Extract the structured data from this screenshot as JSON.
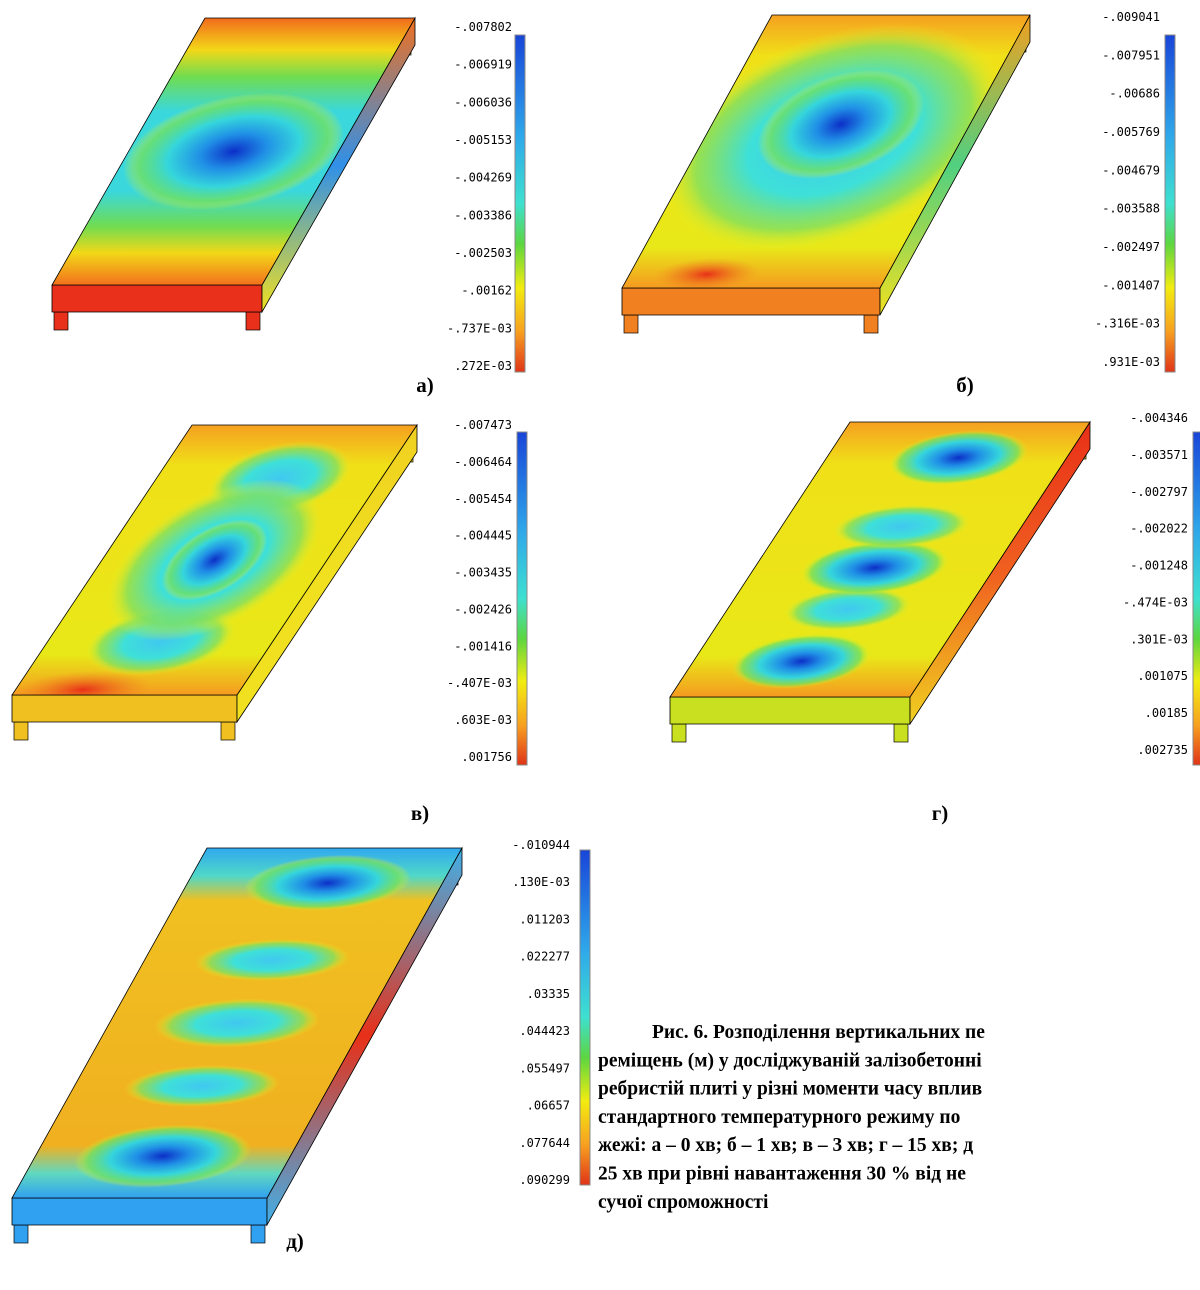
{
  "panels": [
    {
      "label": "а)",
      "scale": [
        "-.007802",
        "-.006919",
        "-.006036",
        "-.005153",
        "-.004269",
        "-.003386",
        "-.002503",
        "-.00162",
        "-.737E-03",
        ".272E-03"
      ]
    },
    {
      "label": "б)",
      "scale": [
        "-.009041",
        "-.007951",
        "-.00686",
        "-.005769",
        "-.004679",
        "-.003588",
        "-.002497",
        "-.001407",
        "-.316E-03",
        ".931E-03"
      ]
    },
    {
      "label": "в)",
      "scale": [
        "-.007473",
        "-.006464",
        "-.005454",
        "-.004445",
        "-.003435",
        "-.002426",
        "-.001416",
        "-.407E-03",
        ".603E-03",
        ".001756"
      ]
    },
    {
      "label": "г)",
      "scale": [
        "-.004346",
        "-.003571",
        "-.002797",
        "-.002022",
        "-.001248",
        "-.474E-03",
        ".301E-03",
        ".001075",
        ".00185",
        ".002735"
      ]
    },
    {
      "label": "д)",
      "scale": [
        "-.010944",
        ".130E-03",
        ".011203",
        ".022277",
        ".03335",
        ".044423",
        ".055497",
        ".06657",
        ".077644",
        ".090299"
      ]
    }
  ],
  "caption": {
    "lines": [
      "Рис. 6. Розподілення вертикальних пе",
      "реміщень (м) у досліджуваній залізобетонні",
      "ребристій плиті у різні моменти часу вплив",
      "стандартного температурного режиму по",
      "жежі: а – 0 хв; б – 1 хв; в – 3 хв; г – 15 хв; д",
      "25 хв при рівні навантаження 30 % від не",
      "сучої спроможності"
    ]
  }
}
